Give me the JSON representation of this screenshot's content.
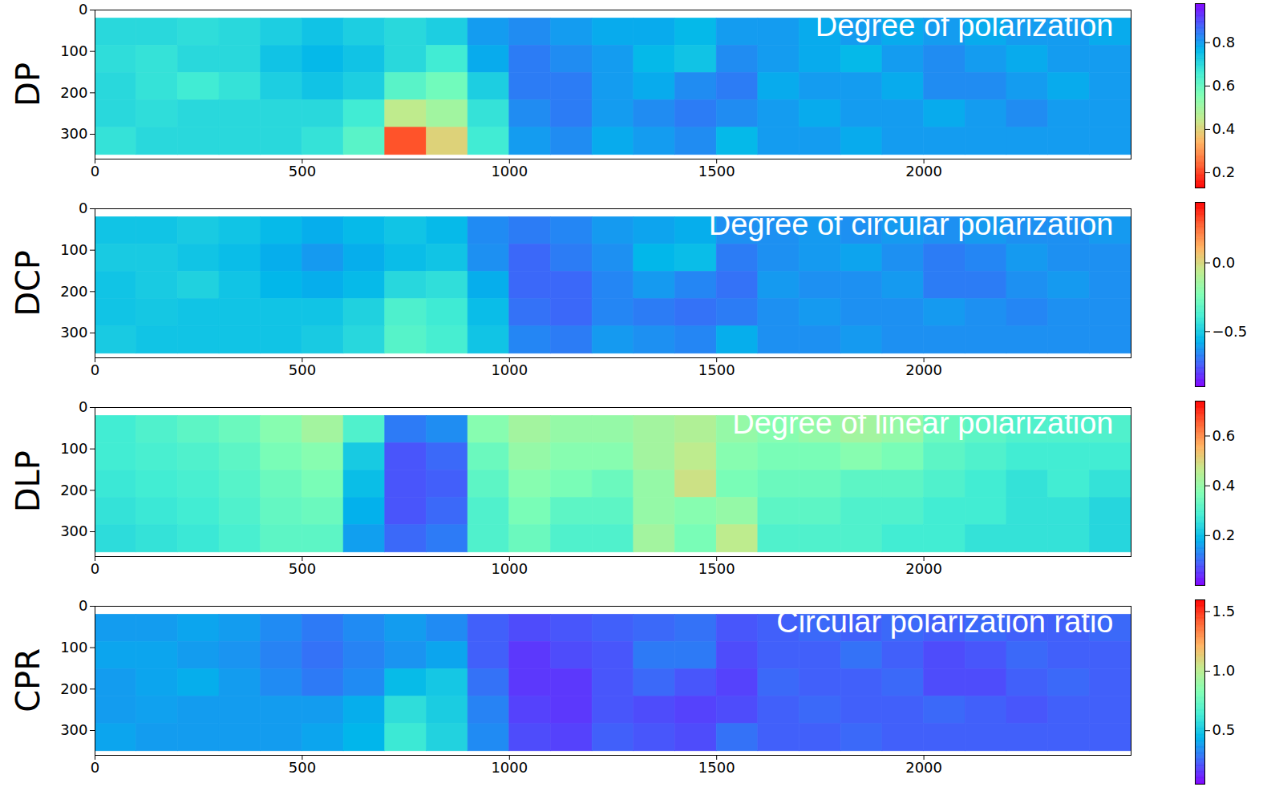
{
  "chart_data": [
    {
      "type": "heatmap",
      "ylabel": "DP",
      "annotation": "Degree of polarization",
      "xlim": [
        0,
        2500
      ],
      "ylim": [
        0,
        360
      ],
      "xticks": [
        0,
        500,
        1000,
        1500,
        2000
      ],
      "yticks": [
        0,
        100,
        200,
        300
      ],
      "x_edges": [
        0,
        100,
        200,
        300,
        400,
        500,
        600,
        700,
        800,
        900,
        1000,
        1100,
        1200,
        1300,
        1400,
        1500,
        1600,
        1700,
        1800,
        1900,
        2000,
        2100,
        2200,
        2300,
        2400,
        2500
      ],
      "y_edges": [
        20,
        86,
        152,
        218,
        284,
        350
      ],
      "cells": [
        [
          0.7,
          0.7,
          0.69,
          0.7,
          0.72,
          0.74,
          0.72,
          0.7,
          0.72,
          0.8,
          0.82,
          0.8,
          0.78,
          0.78,
          0.76,
          0.8,
          0.8,
          0.78,
          0.8,
          0.78,
          0.8,
          0.78,
          0.8,
          0.8,
          0.78
        ],
        [
          0.69,
          0.68,
          0.7,
          0.7,
          0.74,
          0.76,
          0.74,
          0.7,
          0.66,
          0.78,
          0.84,
          0.82,
          0.8,
          0.76,
          0.74,
          0.82,
          0.8,
          0.78,
          0.76,
          0.8,
          0.82,
          0.8,
          0.78,
          0.8,
          0.8
        ],
        [
          0.7,
          0.68,
          0.66,
          0.68,
          0.72,
          0.74,
          0.72,
          0.62,
          0.58,
          0.72,
          0.84,
          0.84,
          0.8,
          0.78,
          0.82,
          0.84,
          0.78,
          0.8,
          0.8,
          0.78,
          0.82,
          0.82,
          0.8,
          0.78,
          0.8
        ],
        [
          0.7,
          0.69,
          0.7,
          0.7,
          0.7,
          0.7,
          0.66,
          0.45,
          0.5,
          0.68,
          0.82,
          0.84,
          0.8,
          0.82,
          0.84,
          0.82,
          0.8,
          0.78,
          0.8,
          0.8,
          0.78,
          0.8,
          0.82,
          0.8,
          0.8
        ],
        [
          0.68,
          0.7,
          0.7,
          0.7,
          0.7,
          0.68,
          0.62,
          0.22,
          0.4,
          0.66,
          0.8,
          0.82,
          0.78,
          0.8,
          0.82,
          0.76,
          0.8,
          0.8,
          0.78,
          0.8,
          0.8,
          0.8,
          0.8,
          0.8,
          0.8
        ]
      ],
      "colorbar": {
        "range": [
          0.13,
          0.98
        ],
        "ticks": [
          0.2,
          0.4,
          0.6,
          0.8
        ],
        "colors": [
          "#ff0000",
          "#ff6232",
          "#ffb462",
          "#c0eb8d",
          "#80ffb4",
          "#40ecd4",
          "#00b5eb",
          "#4062fa",
          "#8000ff"
        ]
      }
    },
    {
      "type": "heatmap",
      "ylabel": "DCP",
      "annotation": "Degree of circular polarization",
      "xlim": [
        0,
        2500
      ],
      "ylim": [
        0,
        360
      ],
      "xticks": [
        0,
        500,
        1000,
        1500,
        2000
      ],
      "yticks": [
        0,
        100,
        200,
        300
      ],
      "x_edges": [
        0,
        100,
        200,
        300,
        400,
        500,
        600,
        700,
        800,
        900,
        1000,
        1100,
        1200,
        1300,
        1400,
        1500,
        1600,
        1700,
        1800,
        1900,
        2000,
        2100,
        2200,
        2300,
        2400,
        2500
      ],
      "y_edges": [
        20,
        86,
        152,
        218,
        284,
        350
      ],
      "cells": [
        [
          -0.52,
          -0.52,
          -0.5,
          -0.52,
          -0.55,
          -0.58,
          -0.55,
          -0.52,
          -0.55,
          -0.65,
          -0.68,
          -0.66,
          -0.62,
          -0.6,
          -0.58,
          -0.64,
          -0.64,
          -0.62,
          -0.64,
          -0.62,
          -0.64,
          -0.62,
          -0.64,
          -0.64,
          -0.62
        ],
        [
          -0.5,
          -0.5,
          -0.52,
          -0.54,
          -0.58,
          -0.62,
          -0.58,
          -0.54,
          -0.52,
          -0.64,
          -0.72,
          -0.68,
          -0.64,
          -0.56,
          -0.54,
          -0.68,
          -0.64,
          -0.62,
          -0.6,
          -0.64,
          -0.68,
          -0.66,
          -0.62,
          -0.64,
          -0.64
        ],
        [
          -0.52,
          -0.5,
          -0.48,
          -0.52,
          -0.56,
          -0.58,
          -0.55,
          -0.46,
          -0.44,
          -0.58,
          -0.72,
          -0.72,
          -0.66,
          -0.62,
          -0.66,
          -0.7,
          -0.62,
          -0.64,
          -0.64,
          -0.62,
          -0.68,
          -0.68,
          -0.64,
          -0.62,
          -0.64
        ],
        [
          -0.52,
          -0.51,
          -0.52,
          -0.52,
          -0.52,
          -0.52,
          -0.48,
          -0.36,
          -0.4,
          -0.54,
          -0.7,
          -0.72,
          -0.66,
          -0.68,
          -0.7,
          -0.68,
          -0.64,
          -0.62,
          -0.64,
          -0.64,
          -0.62,
          -0.64,
          -0.66,
          -0.64,
          -0.64
        ],
        [
          -0.5,
          -0.52,
          -0.52,
          -0.52,
          -0.52,
          -0.5,
          -0.46,
          -0.34,
          -0.38,
          -0.52,
          -0.66,
          -0.68,
          -0.62,
          -0.64,
          -0.66,
          -0.58,
          -0.64,
          -0.64,
          -0.62,
          -0.64,
          -0.64,
          -0.64,
          -0.64,
          -0.64,
          -0.64
        ]
      ],
      "colorbar": {
        "range": [
          -0.9,
          0.44
        ],
        "ticks": [
          {
            "value": -0.5,
            "label": "−0.5"
          },
          {
            "value": 0,
            "label": "0.0"
          }
        ],
        "colors": [
          "#8000ff",
          "#4062fa",
          "#00b5eb",
          "#40ecd4",
          "#80ffb4",
          "#c0eb8d",
          "#ffb462",
          "#ff6232",
          "#ff0000"
        ]
      }
    },
    {
      "type": "heatmap",
      "ylabel": "DLP",
      "annotation": "Degree of linear polarization",
      "xlim": [
        0,
        2500
      ],
      "ylim": [
        0,
        360
      ],
      "xticks": [
        0,
        500,
        1000,
        1500,
        2000
      ],
      "yticks": [
        0,
        100,
        200,
        300
      ],
      "x_edges": [
        0,
        100,
        200,
        300,
        400,
        500,
        600,
        700,
        800,
        900,
        1000,
        1100,
        1200,
        1300,
        1400,
        1500,
        1600,
        1700,
        1800,
        1900,
        2000,
        2100,
        2200,
        2300,
        2400,
        2500
      ],
      "y_edges": [
        20,
        86,
        152,
        218,
        284,
        350
      ],
      "cells": [
        [
          0.28,
          0.3,
          0.32,
          0.34,
          0.38,
          0.42,
          0.3,
          0.12,
          0.14,
          0.38,
          0.42,
          0.4,
          0.4,
          0.42,
          0.44,
          0.4,
          0.38,
          0.4,
          0.42,
          0.4,
          0.34,
          0.32,
          0.3,
          0.3,
          0.3
        ],
        [
          0.28,
          0.29,
          0.3,
          0.32,
          0.36,
          0.38,
          0.22,
          0.08,
          0.1,
          0.34,
          0.4,
          0.38,
          0.38,
          0.42,
          0.46,
          0.38,
          0.36,
          0.36,
          0.38,
          0.36,
          0.32,
          0.3,
          0.28,
          0.28,
          0.28
        ],
        [
          0.27,
          0.28,
          0.29,
          0.31,
          0.34,
          0.36,
          0.2,
          0.08,
          0.09,
          0.32,
          0.38,
          0.36,
          0.34,
          0.4,
          0.48,
          0.36,
          0.34,
          0.34,
          0.32,
          0.32,
          0.3,
          0.28,
          0.26,
          0.28,
          0.26
        ],
        [
          0.26,
          0.27,
          0.28,
          0.3,
          0.33,
          0.34,
          0.18,
          0.08,
          0.1,
          0.3,
          0.36,
          0.32,
          0.32,
          0.4,
          0.38,
          0.4,
          0.32,
          0.32,
          0.3,
          0.3,
          0.28,
          0.28,
          0.26,
          0.26,
          0.24
        ],
        [
          0.25,
          0.26,
          0.27,
          0.29,
          0.32,
          0.32,
          0.16,
          0.1,
          0.12,
          0.3,
          0.34,
          0.3,
          0.3,
          0.42,
          0.36,
          0.46,
          0.3,
          0.3,
          0.3,
          0.28,
          0.28,
          0.26,
          0.26,
          0.26,
          0.24
        ]
      ],
      "colorbar": {
        "range": [
          0.0,
          0.74
        ],
        "ticks": [
          0.2,
          0.4,
          0.6
        ],
        "colors": [
          "#8000ff",
          "#4062fa",
          "#00b5eb",
          "#40ecd4",
          "#80ffb4",
          "#c0eb8d",
          "#ffb462",
          "#ff6232",
          "#ff0000"
        ]
      }
    },
    {
      "type": "heatmap",
      "ylabel": "CPR",
      "annotation": "Circular polarization ratio",
      "xlim": [
        0,
        2500
      ],
      "ylim": [
        0,
        360
      ],
      "xticks": [
        0,
        500,
        1000,
        1500,
        2000
      ],
      "yticks": [
        0,
        100,
        200,
        300
      ],
      "x_edges": [
        0,
        100,
        200,
        300,
        400,
        500,
        600,
        700,
        800,
        900,
        1000,
        1100,
        1200,
        1300,
        1400,
        1500,
        1600,
        1700,
        1800,
        1900,
        2000,
        2100,
        2200,
        2300,
        2400,
        2500
      ],
      "y_edges": [
        20,
        86,
        152,
        218,
        284,
        350
      ],
      "cells": [
        [
          0.38,
          0.38,
          0.4,
          0.38,
          0.34,
          0.3,
          0.34,
          0.38,
          0.34,
          0.24,
          0.2,
          0.22,
          0.24,
          0.26,
          0.28,
          0.22,
          0.24,
          0.26,
          0.24,
          0.26,
          0.24,
          0.26,
          0.24,
          0.24,
          0.26
        ],
        [
          0.4,
          0.4,
          0.38,
          0.36,
          0.32,
          0.28,
          0.32,
          0.36,
          0.4,
          0.24,
          0.16,
          0.2,
          0.22,
          0.3,
          0.3,
          0.2,
          0.24,
          0.24,
          0.28,
          0.24,
          0.2,
          0.22,
          0.26,
          0.24,
          0.24
        ],
        [
          0.38,
          0.4,
          0.42,
          0.38,
          0.34,
          0.3,
          0.34,
          0.46,
          0.5,
          0.28,
          0.16,
          0.16,
          0.22,
          0.26,
          0.22,
          0.18,
          0.26,
          0.24,
          0.24,
          0.26,
          0.2,
          0.2,
          0.24,
          0.26,
          0.24
        ],
        [
          0.38,
          0.39,
          0.38,
          0.38,
          0.38,
          0.38,
          0.42,
          0.58,
          0.52,
          0.32,
          0.18,
          0.16,
          0.22,
          0.2,
          0.18,
          0.2,
          0.24,
          0.26,
          0.24,
          0.24,
          0.26,
          0.24,
          0.22,
          0.24,
          0.24
        ],
        [
          0.4,
          0.38,
          0.38,
          0.38,
          0.38,
          0.4,
          0.44,
          0.62,
          0.54,
          0.34,
          0.2,
          0.18,
          0.24,
          0.22,
          0.2,
          0.28,
          0.24,
          0.24,
          0.26,
          0.24,
          0.24,
          0.24,
          0.24,
          0.24,
          0.24
        ]
      ],
      "colorbar": {
        "range": [
          0.05,
          1.6
        ],
        "ticks": [
          0.5,
          {
            "value": 1,
            "label": "1.0"
          },
          1.5
        ],
        "colors": [
          "#8000ff",
          "#4062fa",
          "#00b5eb",
          "#40ecd4",
          "#80ffb4",
          "#c0eb8d",
          "#ffb462",
          "#ff6232",
          "#ff0000"
        ]
      }
    }
  ]
}
